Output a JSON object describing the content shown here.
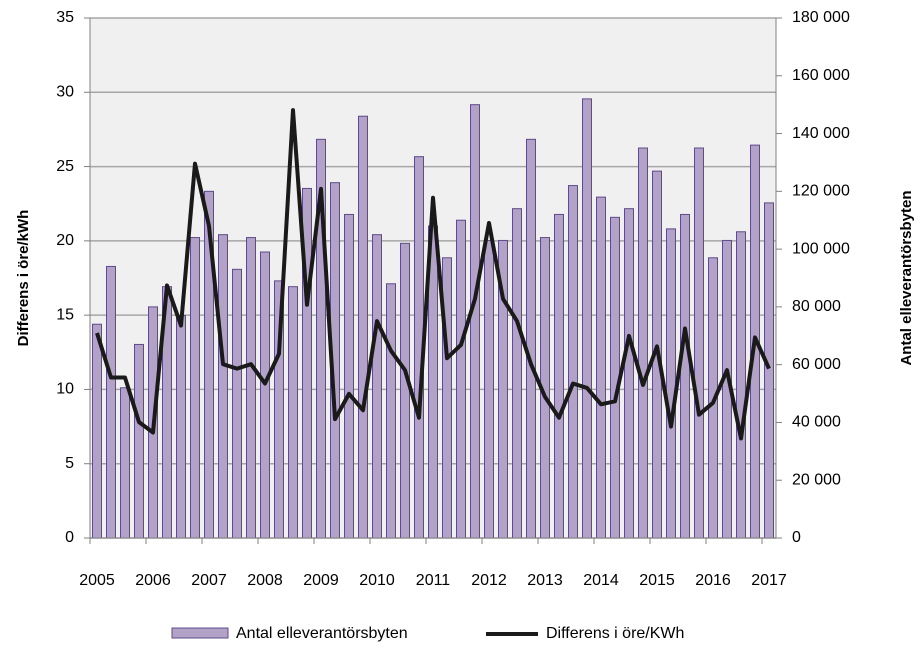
{
  "chart_data": {
    "type": "bar-line",
    "y_label": "Differens i öre/kWh",
    "y2_label": "Antal elleverantörsbyten",
    "categories": [
      "2005",
      null,
      null,
      null,
      "2006",
      null,
      null,
      null,
      "2007",
      null,
      null,
      null,
      "2008",
      null,
      null,
      null,
      "2009",
      null,
      null,
      null,
      "2010",
      null,
      null,
      null,
      "2011",
      null,
      null,
      null,
      "2012",
      null,
      null,
      null,
      "2013",
      null,
      null,
      null,
      "2014",
      null,
      null,
      null,
      "2015",
      null,
      null,
      null,
      "2016",
      null,
      null,
      null,
      "2017"
    ],
    "series": [
      {
        "name": "Antal elleverantörsbyten",
        "kind": "bar",
        "axis": "y2",
        "color": "#b3a2c7",
        "edge": "#5f4b8b",
        "values": [
          74000,
          94000,
          52000,
          67000,
          80000,
          87000,
          77000,
          104000,
          120000,
          105000,
          93000,
          104000,
          99000,
          89000,
          87000,
          121000,
          138000,
          123000,
          112000,
          146000,
          105000,
          88000,
          102000,
          132000,
          108000,
          97000,
          110000,
          150000,
          103000,
          103000,
          114000,
          138000,
          104000,
          112000,
          122000,
          152000,
          118000,
          111000,
          114000,
          135000,
          127000,
          107000,
          112000,
          135000,
          97000,
          103000,
          106000,
          136000,
          116000
        ]
      },
      {
        "name": "Differens i öre/KWh",
        "kind": "line",
        "axis": "y",
        "color": "#1a1a1a",
        "values": [
          13.8,
          10.8,
          10.8,
          7.8,
          7.1,
          17.0,
          14.3,
          25.2,
          21.0,
          11.7,
          11.4,
          11.7,
          10.4,
          12.4,
          28.8,
          15.7,
          23.5,
          8.0,
          9.7,
          8.6,
          14.6,
          12.6,
          11.3,
          8.1,
          22.9,
          12.1,
          13.0,
          16.1,
          21.2,
          16.1,
          14.6,
          11.7,
          9.5,
          8.1,
          10.4,
          10.1,
          9.0,
          9.2,
          13.6,
          10.3,
          12.9,
          7.5,
          14.1,
          8.3,
          9.1,
          11.3,
          6.7,
          13.5,
          11.4
        ]
      }
    ],
    "ylim": [
      0,
      35
    ],
    "yticks": [
      0,
      5,
      10,
      15,
      20,
      25,
      30,
      35
    ],
    "y2lim": [
      0,
      180000
    ],
    "y2ticks": [
      0,
      {
        "value": 20000,
        "label": "20 000"
      },
      {
        "value": 40000,
        "label": "40 000"
      },
      {
        "value": 60000,
        "label": "60 000"
      },
      {
        "value": 80000,
        "label": "80 000"
      },
      {
        "value": 100000,
        "label": "100 000"
      },
      {
        "value": 120000,
        "label": "120 000"
      },
      {
        "value": 140000,
        "label": "140 000"
      },
      {
        "value": 160000,
        "label": "160 000"
      },
      {
        "value": 180000,
        "label": "180 000"
      }
    ],
    "grid": true
  }
}
